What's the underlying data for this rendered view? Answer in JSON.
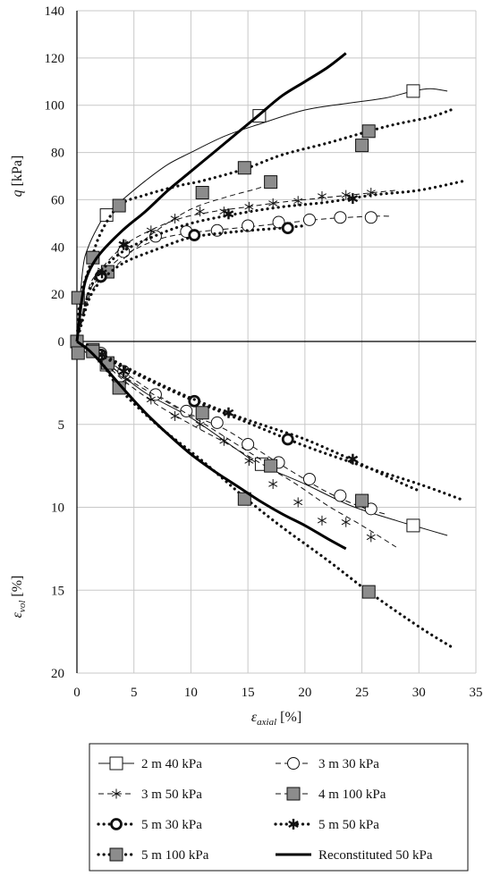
{
  "chart_data": {
    "type": "line",
    "x_axis": {
      "label_main": "ε",
      "label_sub": "axial",
      "label_unit": " [%]",
      "range": [
        0,
        35
      ],
      "ticks": [
        0,
        5,
        10,
        15,
        20,
        25,
        30,
        35
      ],
      "grid": true
    },
    "top_panel": {
      "ylabel_main": "q",
      "ylabel_unit": " [kPa]",
      "range": [
        0,
        140
      ],
      "ticks": [
        0,
        20,
        40,
        60,
        80,
        100,
        120,
        140
      ],
      "grid": true
    },
    "bottom_panel": {
      "ylabel_main": "ε",
      "ylabel_sub": "vol",
      "ylabel_unit": " [%]",
      "range": [
        0,
        20
      ],
      "inverted": true,
      "ticks": [
        0,
        5,
        10,
        15,
        20
      ],
      "grid": true
    },
    "legend_position": "bottom",
    "series": [
      {
        "name": "2 m 40 kPa",
        "line": "thin-solid",
        "marker": "square-open",
        "q": {
          "x": [
            0,
            0.5,
            1,
            2,
            2.6,
            4,
            6,
            8,
            10,
            13,
            16,
            20,
            24,
            27,
            29.5,
            31,
            32.5
          ],
          "y": [
            0,
            30,
            40,
            50,
            54,
            60,
            68,
            75,
            80,
            87,
            92,
            98,
            101,
            103,
            106,
            107,
            106
          ],
          "markers_x": [
            2.6,
            16,
            29.5
          ],
          "markers_y": [
            53.5,
            95.5,
            106
          ]
        },
        "vol": {
          "x": [
            0,
            1,
            3,
            6,
            10,
            14,
            16,
            20,
            24,
            28,
            29.5,
            32.5
          ],
          "y": [
            0,
            0.4,
            1.5,
            3.1,
            4.6,
            6.5,
            7.4,
            8.6,
            9.9,
            10.8,
            11.1,
            11.7
          ],
          "markers_x": [
            2.6,
            16.2,
            29.5
          ],
          "markers_y": [
            1.4,
            7.4,
            11.1
          ]
        }
      },
      {
        "name": "3 m 30 kPa",
        "line": "dashed",
        "marker": "circle-open",
        "q": {
          "x": [
            0,
            1,
            2,
            4,
            7,
            10,
            14,
            18,
            22,
            26,
            27.5
          ],
          "y": [
            0,
            20,
            27,
            36,
            43,
            46,
            48,
            50,
            52,
            53,
            53
          ],
          "markers_x": [
            2.1,
            4.1,
            6.9,
            9.6,
            12.3,
            15,
            17.7,
            20.4,
            23.1,
            25.8
          ],
          "markers_y": [
            27.5,
            38,
            44.5,
            46.5,
            47,
            49,
            50.5,
            51.5,
            52.5,
            52.5
          ]
        },
        "vol": {
          "x": [
            0,
            2,
            4,
            7,
            10,
            13,
            16,
            19,
            22,
            25,
            27
          ],
          "y": [
            0,
            0.8,
            1.8,
            3.2,
            4.4,
            5.3,
            6.6,
            7.9,
            9.1,
            10.0,
            10.4
          ],
          "markers_x": [
            2.1,
            4.1,
            6.9,
            9.6,
            12.3,
            15,
            17.7,
            20.4,
            23.1,
            25.8
          ],
          "markers_y": [
            0.7,
            1.8,
            3.2,
            4.2,
            4.9,
            6.2,
            7.3,
            8.3,
            9.3,
            10.1
          ]
        }
      },
      {
        "name": "3 m 50 kPa",
        "line": "dashed",
        "marker": "star",
        "q": {
          "x": [
            0,
            1,
            2,
            4,
            6,
            9,
            12,
            15,
            18,
            22,
            26,
            28
          ],
          "y": [
            0,
            22,
            30,
            40,
            46,
            52,
            55,
            57,
            59,
            61,
            63,
            64
          ],
          "markers_x": [
            2.2,
            4.3,
            6.5,
            8.6,
            10.8,
            12.9,
            15.1,
            17.2,
            19.4,
            21.5,
            23.6,
            25.8
          ],
          "markers_y": [
            30,
            41,
            47,
            52,
            55,
            55,
            57,
            58.5,
            59.5,
            61.5,
            62,
            63
          ]
        },
        "vol": {
          "x": [
            0,
            2,
            4,
            7,
            10,
            13,
            16,
            19,
            22,
            25,
            28
          ],
          "y": [
            0,
            1.0,
            2.3,
            3.8,
            5.0,
            6.1,
            7.3,
            8.5,
            9.9,
            11.1,
            12.4
          ],
          "markers_x": [
            2.2,
            4.3,
            6.5,
            8.6,
            10.8,
            12.9,
            15.1,
            17.2,
            19.4,
            21.5,
            23.6,
            25.8
          ],
          "markers_y": [
            1.1,
            2.3,
            3.5,
            4.5,
            5.0,
            6.0,
            7.2,
            8.6,
            9.7,
            10.8,
            10.9,
            11.8
          ]
        }
      },
      {
        "name": "4 m 100 kPa",
        "line": "dashed",
        "marker": "square-filled",
        "q": {
          "x": [
            0,
            1,
            2,
            3,
            5,
            7,
            10,
            13,
            16,
            17
          ],
          "y": [
            0,
            18,
            26,
            30,
            39,
            47,
            56,
            61,
            65,
            67.5
          ],
          "markers_x": [
            2.7,
            17
          ],
          "markers_y": [
            29.5,
            67.5
          ]
        },
        "vol": {
          "x": [
            0,
            1,
            2.7,
            5,
            8,
            11,
            14,
            17
          ],
          "y": [
            0,
            0.8,
            1.4,
            2.5,
            3.7,
            4.9,
            6.2,
            7.5
          ],
          "markers_x": [
            1.4,
            2.7,
            11,
            17
          ],
          "markers_y": [
            0.5,
            1.3,
            4.3,
            7.5
          ]
        }
      },
      {
        "name": "5 m 30 kPa",
        "line": "thick-dotted",
        "marker": "circle-bold",
        "q": {
          "x": [
            0,
            1,
            2,
            4,
            7,
            10,
            14,
            18,
            20
          ],
          "y": [
            0,
            17,
            25,
            33,
            39,
            44,
            46.5,
            48,
            49
          ],
          "markers_x": [
            2.1,
            10.3,
            18.5
          ],
          "markers_y": [
            27.5,
            45,
            48
          ]
        },
        "vol": {
          "x": [
            0,
            2,
            5,
            10,
            15,
            20,
            25,
            30,
            34
          ],
          "y": [
            0,
            0.8,
            1.9,
            3.5,
            4.9,
            6.3,
            7.5,
            8.6,
            9.6
          ],
          "markers_x": [
            2.1,
            10.3,
            18.5
          ],
          "markers_y": [
            0.8,
            3.6,
            5.9
          ]
        }
      },
      {
        "name": "5 m 50 kPa",
        "line": "thick-dotted",
        "marker": "star-bold",
        "q": {
          "x": [
            0,
            1,
            2,
            4,
            7,
            10,
            14,
            18,
            22,
            26,
            30,
            34
          ],
          "y": [
            0,
            20,
            29,
            38,
            45,
            50,
            54,
            57,
            59,
            62,
            64,
            68
          ],
          "markers_x": [
            2.2,
            4.1,
            13.3,
            24.2
          ],
          "markers_y": [
            29,
            41,
            54,
            60.5
          ]
        },
        "vol": {
          "x": [
            0,
            2,
            5,
            8,
            11,
            14,
            17,
            20,
            24,
            28,
            30
          ],
          "y": [
            0,
            0.7,
            1.8,
            2.8,
            3.7,
            4.5,
            5.2,
            5.9,
            7.1,
            8.4,
            9.0
          ],
          "markers_x": [
            2.2,
            4.1,
            13.3,
            24.2
          ],
          "markers_y": [
            0.8,
            1.8,
            4.3,
            7.1
          ]
        }
      },
      {
        "name": "5 m 100 kPa",
        "line": "thick-dotted",
        "marker": "square-filled",
        "q": {
          "x": [
            0,
            0.3,
            1,
            2,
            3.7,
            6,
            9,
            11,
            14.7,
            18,
            22,
            25.6,
            28,
            31,
            32.8
          ],
          "y": [
            0,
            18.5,
            30,
            45,
            57.5,
            62,
            66,
            68,
            73,
            79,
            84,
            89,
            92,
            95,
            98
          ],
          "markers_x": [
            0.1,
            1.4,
            3.7,
            11,
            14.7,
            25,
            25.6
          ],
          "markers_y": [
            18.5,
            35.5,
            57.5,
            63,
            73.5,
            83,
            89
          ]
        },
        "vol": {
          "x": [
            0,
            1.4,
            3.7,
            7,
            11,
            14.7,
            18,
            22,
            25.6,
            30,
            32.8
          ],
          "y": [
            0,
            0.5,
            2.8,
            5.0,
            7.2,
            9.4,
            11.2,
            13.2,
            15.1,
            17.2,
            18.4
          ],
          "markers_x": [
            0,
            0.1,
            1.4,
            3.7,
            14.7,
            25,
            25.6
          ],
          "markers_y": [
            0,
            0.7,
            0.6,
            2.8,
            9.5,
            9.6,
            15.1
          ]
        }
      },
      {
        "name": "Reconstituted 50 kPa",
        "line": "thick-solid",
        "marker": "none",
        "q": {
          "x": [
            0,
            0.5,
            1,
            2,
            4,
            6,
            8,
            10,
            12,
            14,
            16,
            18,
            20,
            22,
            23.6
          ],
          "y": [
            0,
            20,
            29,
            37,
            47,
            55,
            64,
            72,
            80,
            88,
            96,
            104,
            110,
            116,
            122
          ],
          "markers_x": [],
          "markers_y": []
        },
        "vol": {
          "x": [
            0,
            1,
            2,
            4,
            6,
            8,
            10,
            12,
            14,
            16,
            18,
            20,
            22,
            23.6
          ],
          "y": [
            0,
            0.5,
            1.2,
            2.8,
            4.3,
            5.6,
            6.8,
            7.8,
            8.7,
            9.6,
            10.4,
            11.1,
            11.9,
            12.5
          ],
          "markers_x": [],
          "markers_y": []
        }
      }
    ]
  }
}
